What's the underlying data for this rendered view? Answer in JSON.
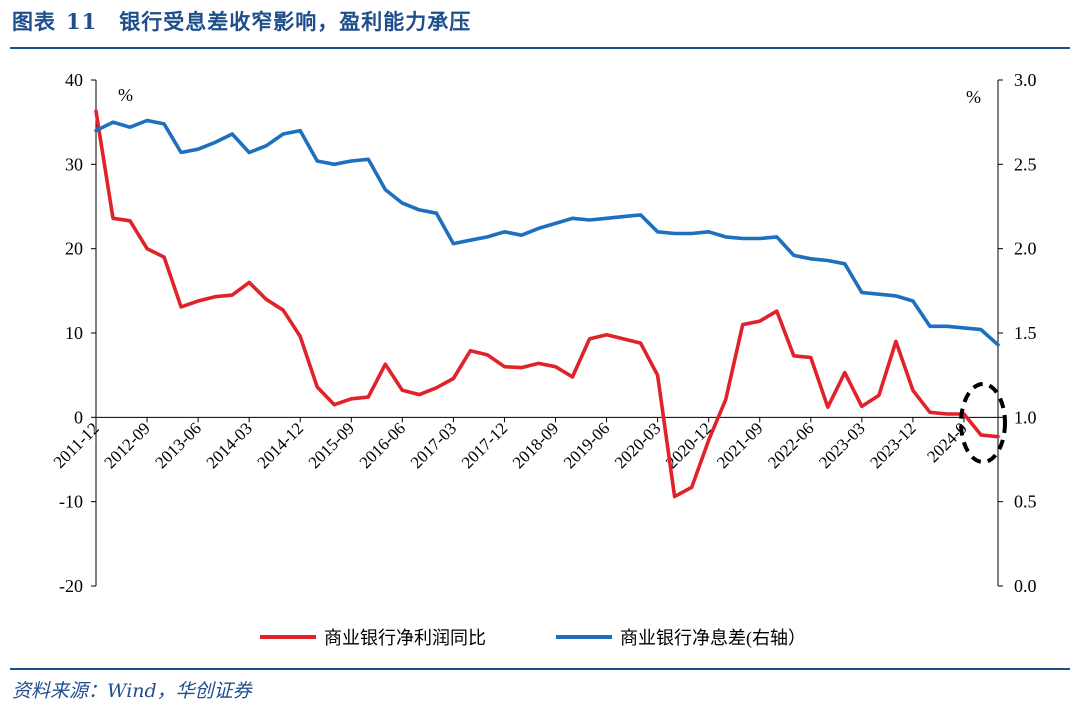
{
  "header": {
    "figure_label": "图表",
    "figure_number": "11",
    "title": "银行受息差收窄影响，盈利能力承压"
  },
  "footer": {
    "source": "资料来源：Wind，华创证券"
  },
  "chart_data": {
    "type": "line",
    "left_unit": "%",
    "right_unit": "%",
    "left_ylim": [
      -20,
      40
    ],
    "left_ticks": [
      -20,
      -10,
      0,
      10,
      20,
      30,
      40
    ],
    "right_ylim": [
      0.0,
      3.0
    ],
    "right_ticks": [
      "0.0",
      "0.5",
      "1.0",
      "1.5",
      "2.0",
      "2.5",
      "3.0"
    ],
    "x_tick_labels": [
      "2011-12",
      "2012-09",
      "2013-06",
      "2014-03",
      "2014-12",
      "2015-09",
      "2016-06",
      "2017-03",
      "2017-12",
      "2018-09",
      "2019-06",
      "2020-03",
      "2020-12",
      "2021-09",
      "2022-06",
      "2023-03",
      "2023-12",
      "2024-09"
    ],
    "x_tick_labels_rendered": [
      "2011-12",
      "2012-09",
      "2013-06",
      "2014-03",
      "2014-12",
      "2015-09",
      "2016-06",
      "2017-03",
      "2017-12",
      "2018-09",
      "2019-06",
      "2020-03",
      "2020-12",
      "2021-09",
      "2022-06",
      "2023-03",
      "2023-12",
      "2024-0"
    ],
    "grid": false,
    "legend_position": "bottom",
    "series": [
      {
        "name": "商业银行净利润同比",
        "axis": "left",
        "color": "#e0232a",
        "values": [
          36.3,
          23.6,
          23.3,
          20.0,
          19.0,
          13.1,
          13.8,
          14.3,
          14.5,
          16.0,
          14.0,
          12.7,
          9.6,
          3.6,
          1.5,
          2.2,
          2.4,
          6.3,
          3.2,
          2.7,
          3.5,
          4.6,
          7.9,
          7.4,
          6.0,
          5.9,
          6.4,
          6.0,
          4.8,
          9.3,
          9.8,
          9.3,
          8.8,
          5.0,
          -9.4,
          -8.3,
          -2.7,
          2.1,
          11.0,
          11.4,
          12.6,
          7.3,
          7.1,
          1.2,
          5.3,
          1.3,
          2.6,
          9.0,
          3.2,
          0.6,
          0.4,
          0.4,
          -2.1,
          -2.3
        ]
      },
      {
        "name": "商业银行净息差(右轴）",
        "axis": "right",
        "color": "#1f6fbf",
        "values": [
          2.7,
          2.75,
          2.72,
          2.76,
          2.74,
          2.57,
          2.59,
          2.63,
          2.68,
          2.57,
          2.61,
          2.68,
          2.7,
          2.52,
          2.5,
          2.52,
          2.53,
          2.35,
          2.27,
          2.23,
          2.21,
          2.03,
          2.05,
          2.07,
          2.1,
          2.08,
          2.12,
          2.15,
          2.18,
          2.17,
          2.18,
          2.19,
          2.2,
          2.1,
          2.09,
          2.09,
          2.1,
          2.07,
          2.06,
          2.06,
          2.07,
          1.96,
          1.94,
          1.93,
          1.91,
          1.74,
          1.73,
          1.72,
          1.69,
          1.54,
          1.54,
          1.53,
          1.52,
          1.43
        ]
      }
    ],
    "annotation": "dashed ellipse highlighting latest decline"
  }
}
